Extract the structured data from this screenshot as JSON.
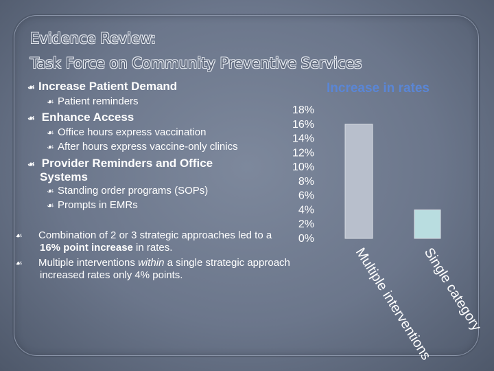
{
  "slide": {
    "title_line1": "Evidence Review:",
    "title_line2": "Task Force on Community Preventive Services",
    "bullet_glyph": "☙",
    "bullets": {
      "demand": "Increase Patient Demand",
      "demand_sub1": "Patient reminders",
      "access": "Enhance Access",
      "access_sub1": "Office hours express vaccination",
      "access_sub2": "After hours express vaccine-only clinics",
      "provider_line1": "Provider Reminders and Office",
      "provider_line2": "Systems",
      "provider_sub1": "Standing order programs (SOPs)",
      "provider_sub2": "Prompts in EMRs",
      "combo_a": "Combination of  2 or 3 strategic approaches led to a ",
      "combo_b": "16% point increase",
      "combo_c": " in rates.",
      "multi_a": "Multiple interventions ",
      "multi_b": "within",
      "multi_c": " a single strategic approach increased rates only 4% points."
    }
  },
  "chart_data": {
    "type": "bar",
    "title": "Increase in rates",
    "categories": [
      "Multiple interventions",
      "Single category"
    ],
    "values": [
      16,
      4
    ],
    "ylim": [
      0,
      18
    ],
    "yticks": [
      "0%",
      "2%",
      "4%",
      "6%",
      "8%",
      "10%",
      "12%",
      "14%",
      "16%",
      "18%"
    ],
    "colors": [
      "#b8bfcc",
      "#b9dde0"
    ],
    "grid": false
  }
}
